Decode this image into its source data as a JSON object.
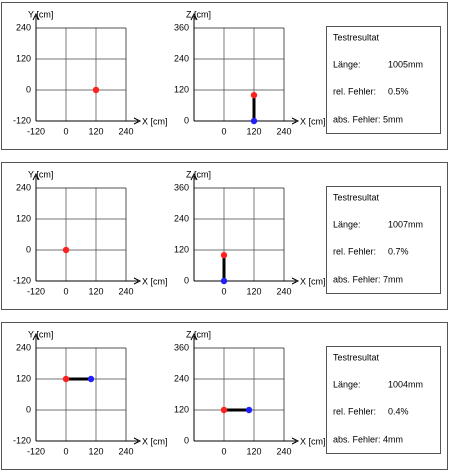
{
  "chart_data": [
    {
      "type": "scatter",
      "xlabel": "X [cm]",
      "ylabel": "Y [cm]",
      "xlim": [
        -120,
        240
      ],
      "ylim": [
        -120,
        240
      ],
      "xticks": [
        -120,
        0,
        120,
        240
      ],
      "yticks": [
        -120,
        0,
        120,
        240
      ],
      "grid": true,
      "line_color": "#000000",
      "x": [
        120
      ],
      "y": [
        0
      ],
      "colors": [
        "#ff2020"
      ]
    },
    {
      "type": "scatter",
      "xlabel": "X [cm]",
      "ylabel": "Z [cm]",
      "xlim": [
        -120,
        240
      ],
      "ylim": [
        0,
        360
      ],
      "xticks": [
        0,
        120,
        240
      ],
      "yticks": [
        0,
        120,
        240,
        360
      ],
      "grid": true,
      "line_color": "#000000",
      "x": [
        120,
        120
      ],
      "y": [
        0,
        100
      ],
      "colors": [
        "#2020ff",
        "#ff2020"
      ]
    },
    {
      "type": "scatter",
      "xlabel": "X [cm]",
      "ylabel": "Y [cm]",
      "xlim": [
        -120,
        240
      ],
      "ylim": [
        -120,
        240
      ],
      "xticks": [
        -120,
        0,
        120,
        240
      ],
      "yticks": [
        -120,
        0,
        120,
        240
      ],
      "grid": true,
      "line_color": "#000000",
      "x": [
        0
      ],
      "y": [
        0
      ],
      "colors": [
        "#ff2020"
      ]
    },
    {
      "type": "scatter",
      "xlabel": "X [cm]",
      "ylabel": "Z [cm]",
      "xlim": [
        -120,
        240
      ],
      "ylim": [
        0,
        360
      ],
      "xticks": [
        0,
        120,
        240
      ],
      "yticks": [
        0,
        120,
        240,
        360
      ],
      "grid": true,
      "line_color": "#000000",
      "x": [
        0,
        0
      ],
      "y": [
        0,
        100
      ],
      "colors": [
        "#2020ff",
        "#ff2020"
      ]
    },
    {
      "type": "scatter",
      "xlabel": "X [cm]",
      "ylabel": "Y [cm]",
      "xlim": [
        -120,
        240
      ],
      "ylim": [
        -120,
        240
      ],
      "xticks": [
        -120,
        0,
        120,
        240
      ],
      "yticks": [
        -120,
        0,
        120,
        240
      ],
      "grid": true,
      "line_color": "#000000",
      "x": [
        0,
        100
      ],
      "y": [
        120,
        120
      ],
      "colors": [
        "#ff2020",
        "#2020ff"
      ]
    },
    {
      "type": "scatter",
      "xlabel": "X [cm]",
      "ylabel": "Z [cm]",
      "xlim": [
        -120,
        240
      ],
      "ylim": [
        0,
        360
      ],
      "xticks": [
        0,
        120,
        240
      ],
      "yticks": [
        0,
        120,
        240,
        360
      ],
      "grid": true,
      "line_color": "#000000",
      "x": [
        0,
        100
      ],
      "y": [
        120,
        120
      ],
      "colors": [
        "#ff2020",
        "#2020ff"
      ]
    }
  ],
  "results": [
    {
      "title": "Testresultat",
      "length_label": "Länge:",
      "length": "1005mm",
      "rel_label": "rel. Fehler:",
      "rel": "0.5%",
      "abs": "abs. Fehler: 5mm"
    },
    {
      "title": "Testresultat",
      "length_label": "Länge:",
      "length": "1007mm",
      "rel_label": "rel. Fehler:",
      "rel": "0.7%",
      "abs": "abs. Fehler: 7mm"
    },
    {
      "title": "Testresultat",
      "length_label": "Länge:",
      "length": "1004mm",
      "rel_label": "rel. Fehler:",
      "rel": "0.4%",
      "abs": "abs. Fehler: 4mm"
    }
  ]
}
